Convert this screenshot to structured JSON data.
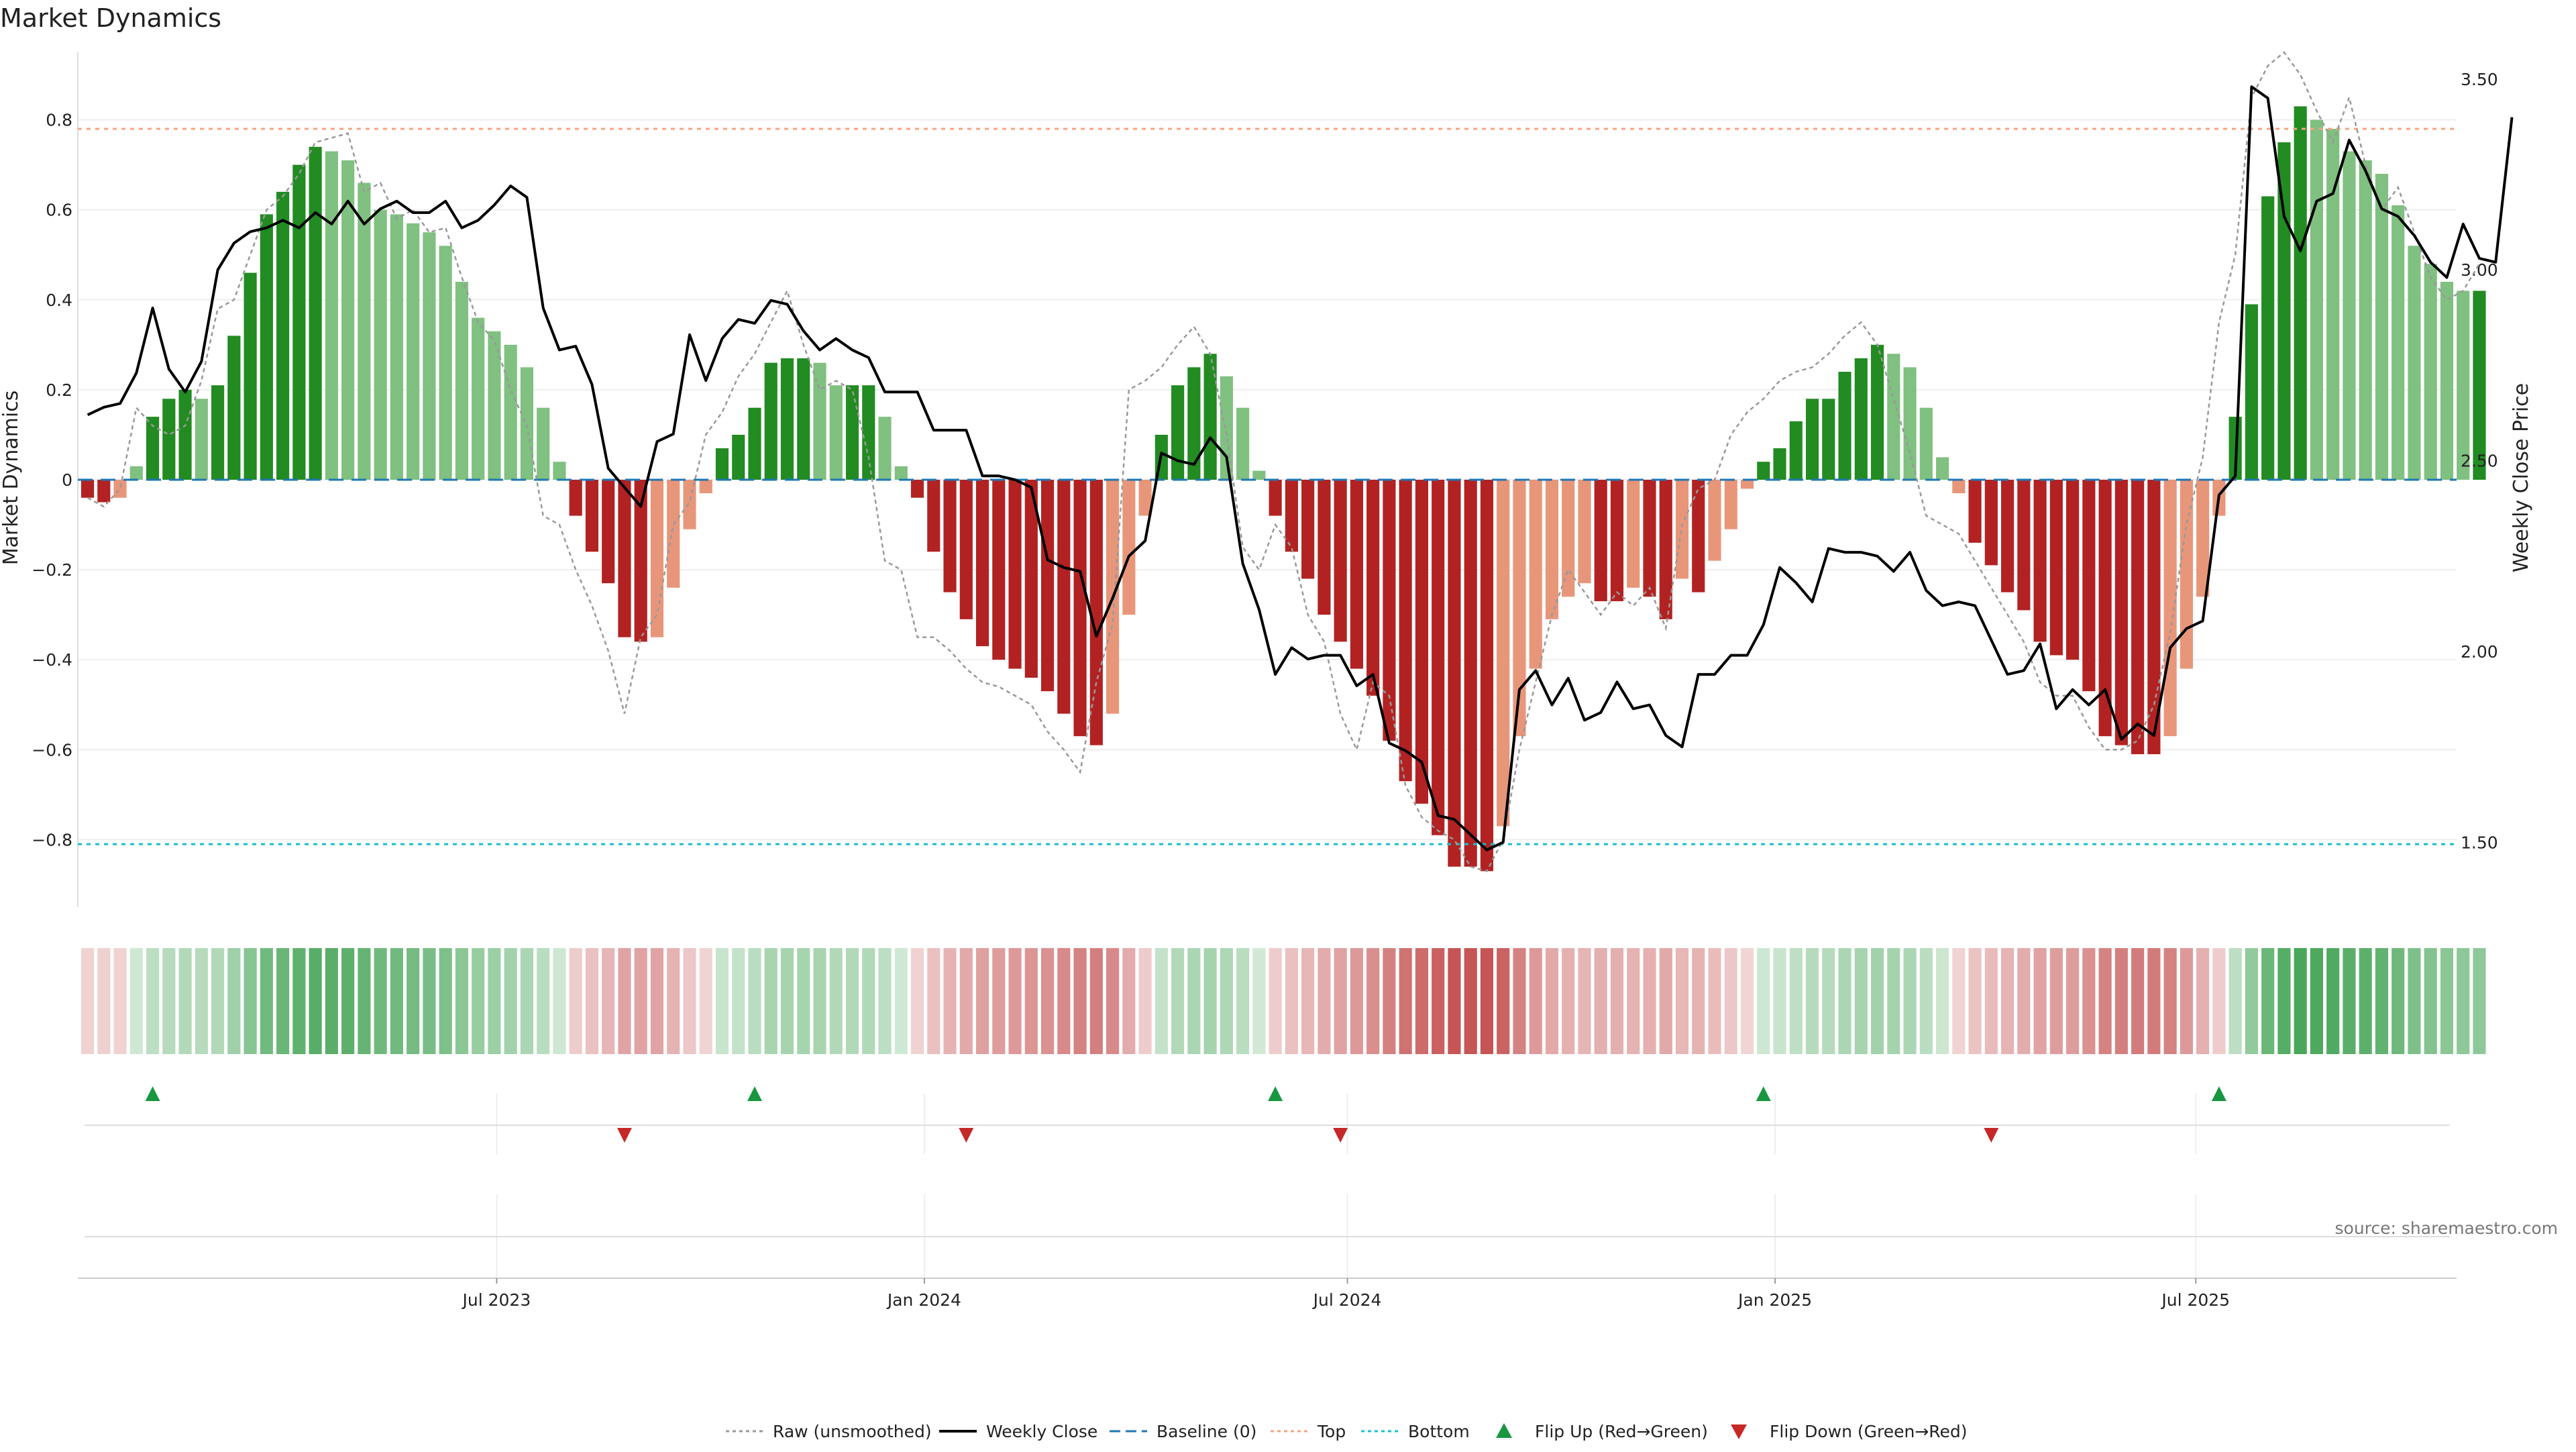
{
  "chart_data": {
    "type": "bar",
    "title": "Market Dynamics",
    "ylabel_left": "Market Dynamics",
    "ylabel_right": "Weekly Close Price",
    "source": "source: sharemaestro.com",
    "ylim_left": [
      -0.95,
      0.95
    ],
    "ylim_right": [
      1.33,
      3.57
    ],
    "yticks_left": [
      -0.8,
      -0.6,
      -0.4,
      -0.2,
      0,
      0.2,
      0.4,
      0.6,
      0.8
    ],
    "ytick_labels_left": [
      "−0.8",
      "−0.6",
      "−0.4",
      "−0.2",
      "0",
      "0.2",
      "0.4",
      "0.6",
      "0.8"
    ],
    "yticks_right": [
      1.5,
      2.0,
      2.5,
      3.0,
      3.5
    ],
    "ytick_labels_right": [
      "1.50",
      "2.00",
      "2.50",
      "3.00",
      "3.50"
    ],
    "x_axis": {
      "type": "time",
      "start": "2023-01-06",
      "end": "2025-10-17",
      "tick_dates": [
        "2023-07-01",
        "2024-01-01",
        "2024-07-01",
        "2025-01-01",
        "2025-07-01"
      ],
      "tick_labels": [
        "Jul 2023",
        "Jan 2024",
        "Jul 2024",
        "Jan 2025",
        "Jul 2025"
      ]
    },
    "reference_lines": [
      {
        "name": "Baseline (0)",
        "value": 0,
        "color": "#1f77b4",
        "style": "dashed"
      },
      {
        "name": "Top",
        "value": 0.78,
        "color": "#f4a582",
        "style": "dotted"
      },
      {
        "name": "Bottom",
        "value": -0.81,
        "color": "#17becf",
        "style": "dotted"
      }
    ],
    "bar_colors": {
      "pos_strong": "#228b22",
      "pos_weak": "#80c080",
      "neg_strong": "#b22222",
      "neg_weak": "#e8967a"
    },
    "line_colors": {
      "raw": "#999999",
      "close": "#000000",
      "flip_up": "#1a9641",
      "flip_down": "#c62828"
    },
    "series": [
      {
        "name": "Market Dynamics",
        "values": [
          -0.04,
          -0.05,
          -0.04,
          0.03,
          0.14,
          0.18,
          0.2,
          0.18,
          0.21,
          0.32,
          0.46,
          0.59,
          0.64,
          0.7,
          0.74,
          0.73,
          0.71,
          0.66,
          0.6,
          0.59,
          0.57,
          0.55,
          0.52,
          0.44,
          0.36,
          0.33,
          0.3,
          0.25,
          0.16,
          0.04,
          -0.08,
          -0.16,
          -0.23,
          -0.35,
          -0.36,
          -0.35,
          -0.24,
          -0.11,
          -0.03,
          0.07,
          0.1,
          0.16,
          0.26,
          0.27,
          0.27,
          0.26,
          0.21,
          0.21,
          0.21,
          0.14,
          0.03,
          -0.04,
          -0.16,
          -0.25,
          -0.31,
          -0.37,
          -0.4,
          -0.42,
          -0.44,
          -0.47,
          -0.52,
          -0.57,
          -0.59,
          -0.52,
          -0.3,
          -0.08,
          0.1,
          0.21,
          0.25,
          0.28,
          0.23,
          0.16,
          0.02,
          -0.08,
          -0.16,
          -0.22,
          -0.3,
          -0.36,
          -0.42,
          -0.48,
          -0.58,
          -0.67,
          -0.72,
          -0.79,
          -0.86,
          -0.86,
          -0.87,
          -0.77,
          -0.57,
          -0.42,
          -0.31,
          -0.26,
          -0.23,
          -0.27,
          -0.27,
          -0.24,
          -0.26,
          -0.31,
          -0.22,
          -0.25,
          -0.18,
          -0.11,
          -0.02,
          0.04,
          0.07,
          0.13,
          0.18,
          0.18,
          0.24,
          0.27,
          0.3,
          0.28,
          0.25,
          0.16,
          0.05,
          -0.03,
          -0.14,
          -0.19,
          -0.25,
          -0.29,
          -0.36,
          -0.39,
          -0.4,
          -0.47,
          -0.57,
          -0.59,
          -0.61,
          -0.61,
          -0.57,
          -0.42,
          -0.26,
          -0.08,
          0.14,
          0.39,
          0.63,
          0.75,
          0.83,
          0.8,
          0.78,
          0.73,
          0.71,
          0.68,
          0.61,
          0.52,
          0.48,
          0.44,
          0.42,
          0.42
        ]
      },
      {
        "name": "Raw (unsmoothed)",
        "values": [
          -0.04,
          -0.06,
          -0.02,
          0.16,
          0.12,
          0.1,
          0.12,
          0.22,
          0.38,
          0.4,
          0.5,
          0.6,
          0.63,
          0.68,
          0.75,
          0.76,
          0.77,
          0.64,
          0.66,
          0.58,
          0.6,
          0.55,
          0.56,
          0.45,
          0.35,
          0.31,
          0.2,
          0.12,
          -0.08,
          -0.1,
          -0.2,
          -0.28,
          -0.38,
          -0.52,
          -0.35,
          -0.3,
          -0.1,
          -0.05,
          0.1,
          0.15,
          0.23,
          0.28,
          0.35,
          0.42,
          0.3,
          0.2,
          0.22,
          0.2,
          0.05,
          -0.18,
          -0.2,
          -0.35,
          -0.35,
          -0.38,
          -0.42,
          -0.45,
          -0.46,
          -0.48,
          -0.5,
          -0.56,
          -0.6,
          -0.65,
          -0.45,
          -0.32,
          0.2,
          0.22,
          0.25,
          0.3,
          0.34,
          0.28,
          0.1,
          -0.15,
          -0.2,
          -0.1,
          -0.15,
          -0.3,
          -0.36,
          -0.52,
          -0.6,
          -0.45,
          -0.48,
          -0.68,
          -0.75,
          -0.78,
          -0.8,
          -0.86,
          -0.87,
          -0.8,
          -0.6,
          -0.45,
          -0.3,
          -0.2,
          -0.25,
          -0.3,
          -0.25,
          -0.28,
          -0.24,
          -0.33,
          -0.1,
          -0.02,
          0.0,
          0.1,
          0.15,
          0.18,
          0.22,
          0.24,
          0.25,
          0.28,
          0.32,
          0.35,
          0.3,
          0.18,
          0.06,
          -0.08,
          -0.1,
          -0.12,
          -0.18,
          -0.24,
          -0.3,
          -0.36,
          -0.45,
          -0.48,
          -0.48,
          -0.55,
          -0.6,
          -0.6,
          -0.58,
          -0.5,
          -0.34,
          -0.1,
          0.05,
          0.35,
          0.5,
          0.85,
          0.92,
          0.95,
          0.9,
          0.82,
          0.75,
          0.85,
          0.7,
          0.6,
          0.65,
          0.55,
          0.45,
          0.4,
          0.42,
          0.48
        ]
      },
      {
        "name": "Weekly Close",
        "axis": "right",
        "values": [
          2.62,
          2.64,
          2.65,
          2.73,
          2.9,
          2.74,
          2.68,
          2.76,
          3.0,
          3.07,
          3.1,
          3.11,
          3.13,
          3.11,
          3.15,
          3.12,
          3.18,
          3.12,
          3.16,
          3.18,
          3.15,
          3.15,
          3.18,
          3.11,
          3.13,
          3.17,
          3.22,
          3.19,
          2.9,
          2.79,
          2.8,
          2.7,
          2.48,
          2.43,
          2.38,
          2.55,
          2.57,
          2.83,
          2.71,
          2.82,
          2.87,
          2.86,
          2.92,
          2.91,
          2.84,
          2.79,
          2.82,
          2.79,
          2.77,
          2.68,
          2.68,
          2.68,
          2.58,
          2.58,
          2.58,
          2.46,
          2.46,
          2.45,
          2.43,
          2.24,
          2.22,
          2.21,
          2.04,
          2.14,
          2.25,
          2.29,
          2.52,
          2.5,
          2.49,
          2.56,
          2.51,
          2.23,
          2.11,
          1.94,
          2.01,
          1.98,
          1.99,
          1.99,
          1.91,
          1.94,
          1.76,
          1.74,
          1.71,
          1.57,
          1.56,
          1.52,
          1.48,
          1.5,
          1.9,
          1.95,
          1.86,
          1.93,
          1.82,
          1.84,
          1.92,
          1.85,
          1.86,
          1.78,
          1.75,
          1.94,
          1.94,
          1.99,
          1.99,
          2.07,
          2.22,
          2.18,
          2.13,
          2.27,
          2.26,
          2.26,
          2.25,
          2.21,
          2.26,
          2.16,
          2.12,
          2.13,
          2.12,
          2.03,
          1.94,
          1.95,
          2.02,
          1.85,
          1.9,
          1.86,
          1.9,
          1.77,
          1.81,
          1.78,
          2.01,
          2.06,
          2.08,
          2.41,
          2.46,
          3.48,
          3.45,
          3.14,
          3.05,
          3.18,
          3.2,
          3.34,
          3.26,
          3.16,
          3.14,
          3.09,
          3.02,
          2.98,
          3.12,
          3.03,
          3.02,
          3.4
        ]
      }
    ],
    "flips": {
      "up": [
        "2023-02-03",
        "2023-10-20",
        "2024-05-31",
        "2024-12-27",
        "2025-07-11"
      ],
      "down": [
        "2023-08-25",
        "2024-01-19",
        "2024-06-28",
        "2025-04-04"
      ]
    },
    "legend": {
      "placement": "bottom-center",
      "items": [
        {
          "label": "Raw (unsmoothed)",
          "kind": "dotted-line",
          "color": "#999999"
        },
        {
          "label": "Weekly Close",
          "kind": "line",
          "color": "#000000"
        },
        {
          "label": "Baseline (0)",
          "kind": "dashed-line",
          "color": "#1f77b4"
        },
        {
          "label": "Top",
          "kind": "dotted-line",
          "color": "#f4a582"
        },
        {
          "label": "Bottom",
          "kind": "dotted-line",
          "color": "#17becf"
        },
        {
          "label": "Flip Up (Red→Green)",
          "kind": "triangle-up",
          "color": "#1a9641"
        },
        {
          "label": "Flip Down (Green→Red)",
          "kind": "triangle-down",
          "color": "#c62828"
        }
      ]
    }
  }
}
